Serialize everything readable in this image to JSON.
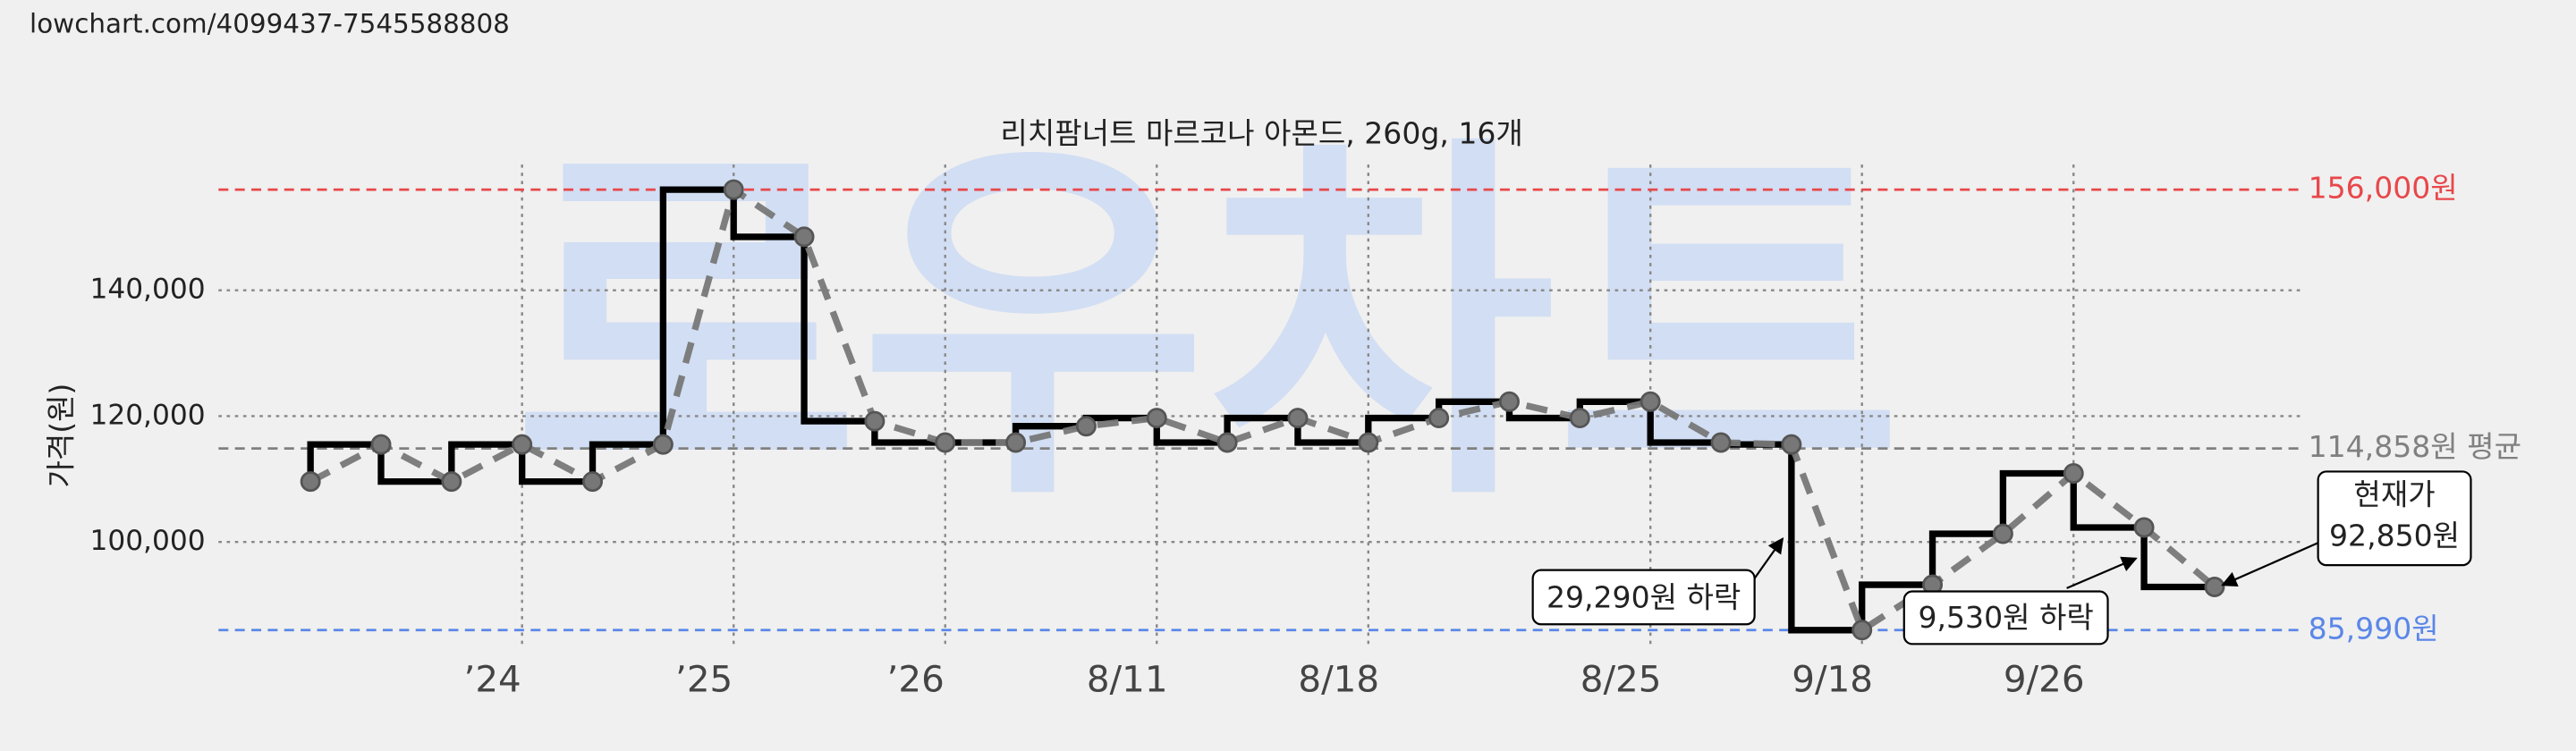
{
  "url": "lowchart.com/4099437-7545588808",
  "watermark": "로우차트",
  "chart_data": {
    "type": "step-line",
    "title": "리치팜너트 마르코나 아몬드, 260g, 16개",
    "y_label": "가격(원)",
    "categories": [
      null,
      null,
      null,
      "’24",
      null,
      null,
      "’25",
      null,
      null,
      "’26",
      null,
      null,
      "8/11",
      null,
      null,
      "8/18",
      null,
      null,
      null,
      "8/25",
      null,
      null,
      "9/18",
      null,
      null,
      "9/26",
      null,
      null
    ],
    "series": [
      {
        "color": "#000000",
        "dash_color": "#777777",
        "values": [
          109600,
          115500,
          109600,
          115500,
          109600,
          115500,
          156000,
          148500,
          119200,
          115800,
          115800,
          118400,
          119700,
          115800,
          119700,
          115800,
          119700,
          122300,
          119700,
          122300,
          115800,
          115500,
          85990,
          93200,
          101300,
          110900,
          102300,
          92850
        ]
      }
    ],
    "ylim": [
      83000,
      160000
    ],
    "yticks": [
      {
        "value": 100000,
        "label": "100,000"
      },
      {
        "value": 120000,
        "label": "120,000"
      },
      {
        "value": 140000,
        "label": "140,000"
      }
    ],
    "grid": true,
    "reference_lines": [
      {
        "value": 156000,
        "label": "156,000원",
        "color": "#e8474a"
      },
      {
        "value": 114858,
        "label": "114,858원 평균",
        "color": "#808080"
      },
      {
        "value": 85990,
        "label": "85,990원",
        "color": "#5b87e8"
      }
    ],
    "annotations": [
      {
        "text": "29,290원 하락"
      },
      {
        "text": "9,530원 하락"
      },
      {
        "text": "현재가",
        "text2": "92,850원"
      }
    ]
  }
}
